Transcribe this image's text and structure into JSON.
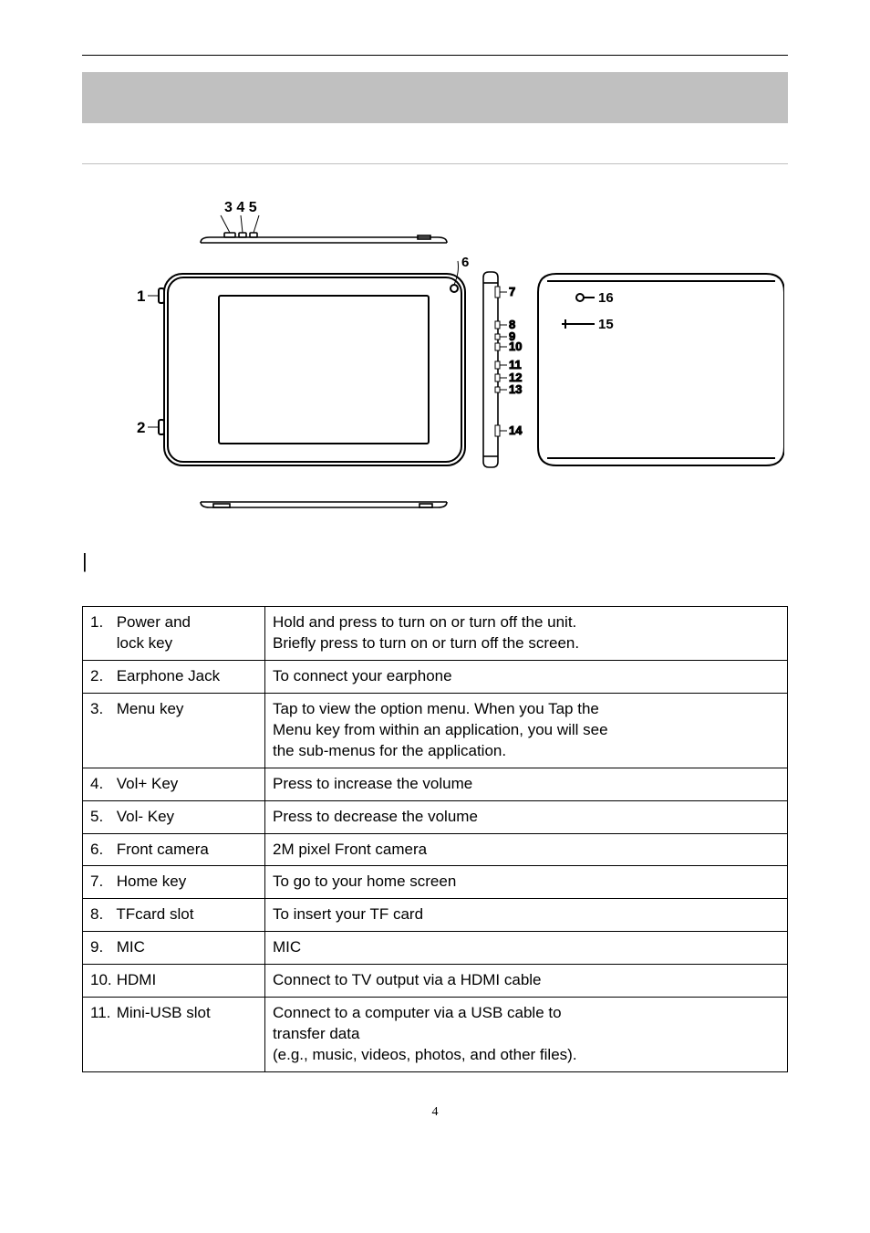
{
  "diagram": {
    "top_labels": "3 4 5",
    "front_labels": {
      "left_top": "1",
      "left_bottom": "2",
      "corner": "6"
    },
    "side_labels": [
      "7",
      "8",
      "9",
      "10",
      "11",
      "12",
      "13",
      "14"
    ],
    "back_labels": {
      "led": "16",
      "cam": "15"
    }
  },
  "rows": [
    {
      "num": "1.",
      "name_lines": [
        "Power and",
        "lock key"
      ],
      "desc_lines": [
        "Hold and press to turn on or turn off the unit.",
        "Briefly press to turn on or turn off the screen."
      ]
    },
    {
      "num": "2.",
      "name_lines": [
        "Earphone Jack"
      ],
      "desc_lines": [
        "To connect your earphone"
      ]
    },
    {
      "num": "3.",
      "name_lines": [
        "Menu key"
      ],
      "desc_lines": [
        "Tap to view the option menu.    When you Tap the",
        "Menu key from within an application, you will see",
        "the sub-menus for the application."
      ]
    },
    {
      "num": "4.",
      "name_lines": [
        "Vol+ Key"
      ],
      "desc_lines": [
        "Press to increase the volume"
      ]
    },
    {
      "num": "5.",
      "name_lines": [
        "Vol- Key"
      ],
      "desc_lines": [
        "Press to decrease the volume"
      ]
    },
    {
      "num": "6.",
      "name_lines": [
        "Front camera"
      ],
      "desc_lines": [
        "2M pixel Front camera"
      ]
    },
    {
      "num": "7.",
      "name_lines": [
        "Home key"
      ],
      "desc_lines": [
        "To go to your home screen"
      ]
    },
    {
      "num": "8.",
      "name_lines": [
        "TFcard slot"
      ],
      "desc_lines": [
        "To insert your TF card"
      ]
    },
    {
      "num": "9.",
      "name_lines": [
        "MIC"
      ],
      "desc_lines": [
        "MIC"
      ]
    },
    {
      "num": "10.",
      "name_lines": [
        "HDMI"
      ],
      "desc_lines": [
        "Connect to TV output via a HDMI cable"
      ]
    },
    {
      "num": "11.",
      "name_lines": [
        "Mini-USB slot"
      ],
      "desc_lines": [
        "Connect to a computer via a USB cable to",
        "transfer data",
        "(e.g., music, videos, photos, and other files)."
      ]
    }
  ],
  "page_number": "4"
}
